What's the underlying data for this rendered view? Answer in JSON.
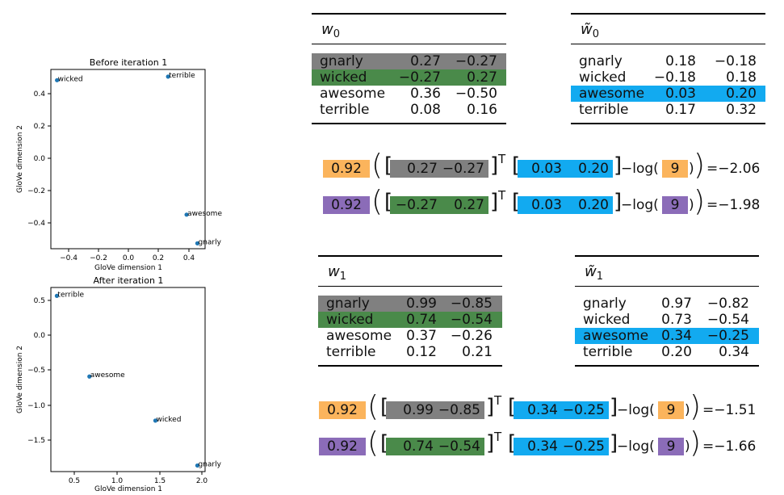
{
  "colors": {
    "gnarly": "#808080",
    "wicked": "#4a8a4a",
    "awesome": "#12aaf0",
    "orange": "#fbb45c",
    "purple": "#8b6cb8",
    "point": "#1f77b4"
  },
  "plots": [
    {
      "title": "Before iteration 1",
      "xlabel": "GloVe dimension 1",
      "ylabel": "GloVe dimension 2",
      "xticks": [
        "−0.4",
        "−0.2",
        "0.0",
        "0.2",
        "0.4"
      ],
      "yticks": [
        "0.4",
        "0.2",
        "0.0",
        "−0.2",
        "−0.4"
      ]
    },
    {
      "title": "After iteration 1",
      "xlabel": "GloVe dimension 1",
      "ylabel": "GloVe dimension 2",
      "xticks": [
        "0.5",
        "1.0",
        "1.5",
        "2.0"
      ],
      "yticks": [
        "0.5",
        "0.0",
        "−0.5",
        "−1.0",
        "−1.5"
      ]
    }
  ],
  "chart_data": [
    {
      "type": "scatter",
      "title": "Before iteration 1",
      "xlabel": "GloVe dimension 1",
      "ylabel": "GloVe dimension 2",
      "xlim": [
        -0.5,
        0.5
      ],
      "ylim": [
        -0.48,
        0.52
      ],
      "points": [
        {
          "label": "wicked",
          "x": -0.46,
          "y": 0.46
        },
        {
          "label": "terrible",
          "x": 0.26,
          "y": 0.48
        },
        {
          "label": "awesome",
          "x": 0.38,
          "y": -0.29
        },
        {
          "label": "gnarly",
          "x": 0.45,
          "y": -0.45
        }
      ]
    },
    {
      "type": "scatter",
      "title": "After iteration 1",
      "xlabel": "GloVe dimension 1",
      "ylabel": "GloVe dimension 2",
      "xlim": [
        0.25,
        2.05
      ],
      "ylim": [
        -1.75,
        0.67
      ],
      "points": [
        {
          "label": "terrible",
          "x": 0.32,
          "y": 0.56
        },
        {
          "label": "awesome",
          "x": 0.7,
          "y": -0.5
        },
        {
          "label": "wicked",
          "x": 1.47,
          "y": -1.08
        },
        {
          "label": "gnarly",
          "x": 1.96,
          "y": -1.67
        }
      ]
    }
  ],
  "tables": {
    "w0": {
      "name": "w",
      "sub": "0",
      "rows": [
        {
          "word": "gnarly",
          "a": "0.27",
          "b": "−0.27"
        },
        {
          "word": "wicked",
          "a": "−0.27",
          "b": "0.27"
        },
        {
          "word": "awesome",
          "a": "0.36",
          "b": "−0.50"
        },
        {
          "word": "terrible",
          "a": "0.08",
          "b": "0.16"
        }
      ]
    },
    "wt0": {
      "name": "w̃",
      "sub": "0",
      "rows": [
        {
          "word": "gnarly",
          "a": "0.18",
          "b": "−0.18"
        },
        {
          "word": "wicked",
          "a": "−0.18",
          "b": "0.18"
        },
        {
          "word": "awesome",
          "a": "0.03",
          "b": "0.20"
        },
        {
          "word": "terrible",
          "a": "0.17",
          "b": "0.32"
        }
      ]
    },
    "w1": {
      "name": "w",
      "sub": "1",
      "rows": [
        {
          "word": "gnarly",
          "a": "0.99",
          "b": "−0.85"
        },
        {
          "word": "wicked",
          "a": "0.74",
          "b": "−0.54"
        },
        {
          "word": "awesome",
          "a": "0.37",
          "b": "−0.26"
        },
        {
          "word": "terrible",
          "a": "0.12",
          "b": "0.21"
        }
      ]
    },
    "wt1": {
      "name": "w̃",
      "sub": "1",
      "rows": [
        {
          "word": "gnarly",
          "a": "0.97",
          "b": "−0.82"
        },
        {
          "word": "wicked",
          "a": "0.73",
          "b": "−0.54"
        },
        {
          "word": "awesome",
          "a": "0.34",
          "b": "−0.25"
        },
        {
          "word": "terrible",
          "a": "0.20",
          "b": "0.34"
        }
      ]
    }
  },
  "equations": [
    {
      "coef": "0.92",
      "v1a": "0.27",
      "v1b": "−0.27",
      "v2a": "0.03",
      "v2b": "0.20",
      "log_arg": "9",
      "result": "=−2.06"
    },
    {
      "coef": "0.92",
      "v1a": "−0.27",
      "v1b": "0.27",
      "v2a": "0.03",
      "v2b": "0.20",
      "log_arg": "9",
      "result": "=−1.98"
    },
    {
      "coef": "0.92",
      "v1a": "0.99",
      "v1b": "−0.85",
      "v2a": "0.34",
      "v2b": "−0.25",
      "log_arg": "9",
      "result": "=−1.51"
    },
    {
      "coef": "0.92",
      "v1a": "0.74",
      "v1b": "−0.54",
      "v2a": "0.34",
      "v2b": "−0.25",
      "log_arg": "9",
      "result": "=−1.66"
    }
  ],
  "symbols": {
    "transpose": "T",
    "log_open": "−log(",
    "minus": "−"
  }
}
